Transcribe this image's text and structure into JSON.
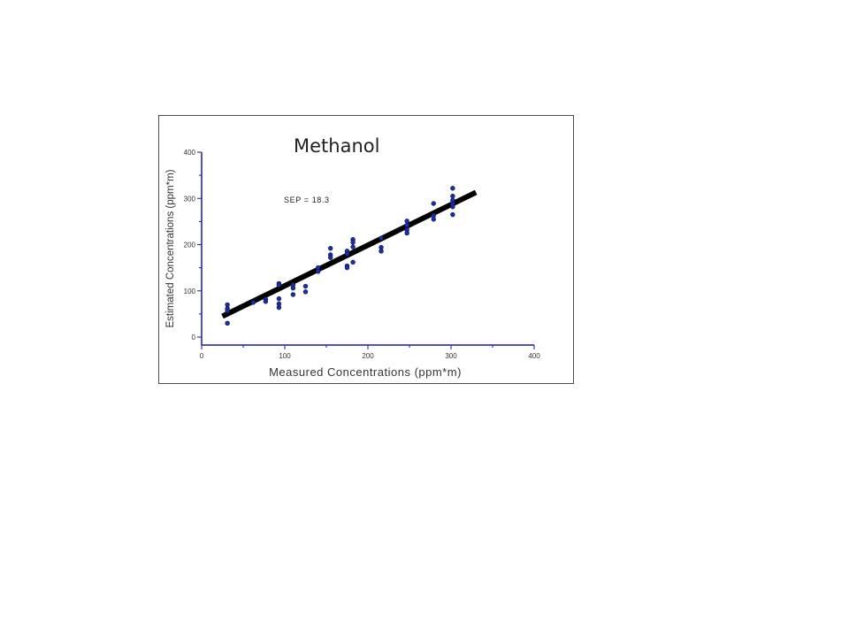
{
  "chart_data": {
    "type": "scatter",
    "title": "Methanol",
    "xlabel": "Measured Concentrations (ppm*m)",
    "ylabel": "Estimated Concentrations (ppm*m)",
    "annotation": "SEP = 18.3",
    "xlim": [
      0,
      400
    ],
    "ylim": [
      0,
      400
    ],
    "x_ticks": [
      "0",
      "100",
      "200",
      "300",
      "400"
    ],
    "y_ticks": [
      "0",
      "100",
      "200",
      "300",
      "400"
    ],
    "grid": false,
    "legend": "none",
    "axis_color": "#1a1aa6",
    "point_color": "#1f2fa0",
    "fit_line_color": "#000000",
    "series": [
      {
        "points": [
          [
            31,
            70
          ],
          [
            31,
            62
          ],
          [
            31,
            57
          ],
          [
            31,
            30
          ],
          [
            62,
            75
          ],
          [
            77,
            82
          ],
          [
            77,
            77
          ],
          [
            93,
            116
          ],
          [
            93,
            113
          ],
          [
            93,
            83
          ],
          [
            93,
            72
          ],
          [
            93,
            64
          ],
          [
            110,
            113
          ],
          [
            110,
            106
          ],
          [
            110,
            92
          ],
          [
            125,
            110
          ],
          [
            125,
            98
          ],
          [
            140,
            150
          ],
          [
            140,
            142
          ],
          [
            155,
            192
          ],
          [
            155,
            178
          ],
          [
            155,
            172
          ],
          [
            175,
            186
          ],
          [
            175,
            180
          ],
          [
            175,
            154
          ],
          [
            175,
            150
          ],
          [
            182,
            211
          ],
          [
            182,
            205
          ],
          [
            182,
            195
          ],
          [
            182,
            162
          ],
          [
            216,
            214
          ],
          [
            216,
            194
          ],
          [
            216,
            186
          ],
          [
            247,
            251
          ],
          [
            247,
            242
          ],
          [
            247,
            232
          ],
          [
            247,
            225
          ],
          [
            279,
            289
          ],
          [
            279,
            263
          ],
          [
            279,
            255
          ],
          [
            302,
            322
          ],
          [
            302,
            305
          ],
          [
            302,
            296
          ],
          [
            302,
            288
          ],
          [
            302,
            282
          ],
          [
            302,
            265
          ]
        ]
      }
    ],
    "fit_line": {
      "x": [
        25,
        330
      ],
      "y": [
        45,
        313
      ]
    }
  }
}
